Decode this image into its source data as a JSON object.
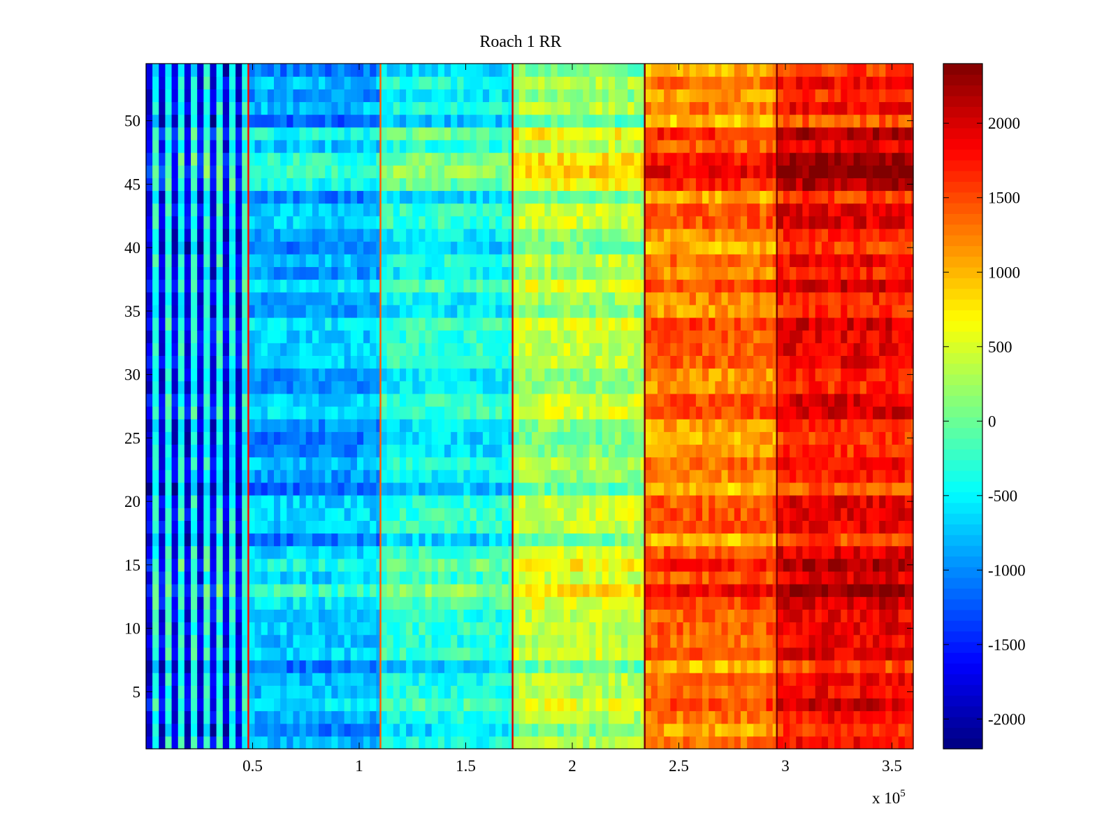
{
  "chart_data": {
    "type": "heatmap",
    "title": "Roach 1 RR",
    "xlabel": "",
    "ylabel": "",
    "x_exponent_label": "x 10",
    "x_exponent": "5",
    "xlim": [
      0,
      360000
    ],
    "ylim": [
      0.5,
      54.5
    ],
    "x_ticks": [
      50000,
      100000,
      150000,
      200000,
      250000,
      300000,
      350000
    ],
    "x_tick_labels": [
      "0.5",
      "1",
      "1.5",
      "2",
      "2.5",
      "3",
      "3.5"
    ],
    "y_ticks": [
      5,
      10,
      15,
      20,
      25,
      30,
      35,
      40,
      45,
      50
    ],
    "y_tick_labels": [
      "5",
      "10",
      "15",
      "20",
      "25",
      "30",
      "35",
      "40",
      "45",
      "50"
    ],
    "rows": 54,
    "colormap": "jet",
    "colorbar": {
      "clim": [
        -2200,
        2400
      ],
      "ticks": [
        -2000,
        -1500,
        -1000,
        -500,
        0,
        500,
        1000,
        1500,
        2000
      ],
      "tick_labels": [
        "-2000",
        "-1500",
        "-1000",
        "-500",
        "0",
        "500",
        "1000",
        "1500",
        "2000"
      ]
    },
    "segment_boundaries": [
      48000,
      110000,
      172000,
      234000,
      296000
    ],
    "segment_mean_values": [
      -1100,
      -900,
      -500,
      200,
      1200,
      1700
    ],
    "boundary_lines": [
      {
        "x": 48000,
        "value": 1800
      },
      {
        "x": 110000,
        "value": 1400
      },
      {
        "x": 172000,
        "value": 2000
      },
      {
        "x": 234000,
        "value": 2400
      },
      {
        "x": 296000,
        "value": 2400
      }
    ],
    "warm_rows": [
      {
        "rows": [
          12,
          16
        ],
        "note": "high band"
      },
      {
        "rows": [
          32,
          34
        ],
        "note": "high band"
      },
      {
        "rows": [
          45,
          49
        ],
        "note": "high band"
      }
    ],
    "grid": false,
    "colors": {
      "frame": "#000000",
      "background": "#ffffff"
    }
  }
}
